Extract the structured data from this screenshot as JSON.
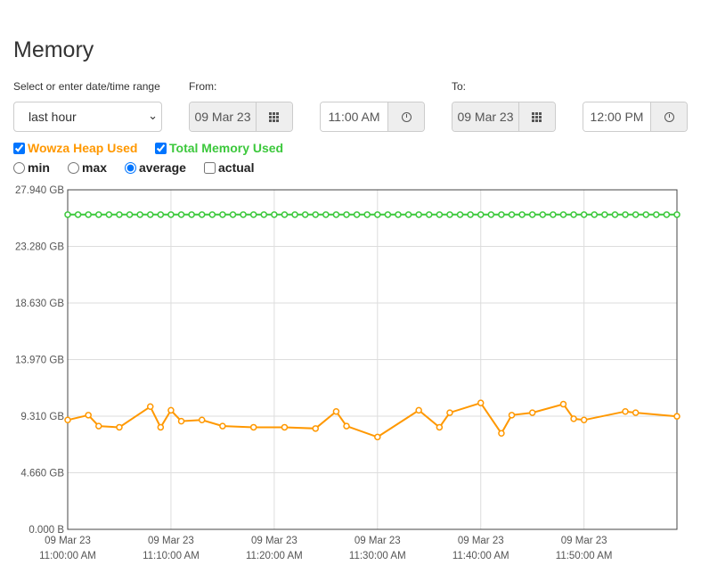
{
  "page": {
    "title": "Memory"
  },
  "range": {
    "label": "Select or enter date/time range",
    "selected": "last hour",
    "from_label": "From:",
    "to_label": "To:",
    "from_date": "09 Mar 23",
    "from_time": "11:00 AM",
    "to_date": "09 Mar 23",
    "to_time": "12:00 PM"
  },
  "series_toggles": [
    {
      "label": "Wowza Heap Used",
      "checked": true,
      "color": "#ff9800"
    },
    {
      "label": "Total Memory Used",
      "checked": true,
      "color": "#3cc83c"
    }
  ],
  "aggregations": [
    {
      "label": "min",
      "type": "radio",
      "checked": false
    },
    {
      "label": "max",
      "type": "radio",
      "checked": false
    },
    {
      "label": "average",
      "type": "radio",
      "checked": true
    },
    {
      "label": "actual",
      "type": "checkbox",
      "checked": false
    }
  ],
  "chart_data": {
    "type": "line",
    "ylim": [
      0,
      27.94
    ],
    "y_ticks": [
      {
        "value": 0,
        "label": "0.000 B"
      },
      {
        "value": 4.66,
        "label": "4.660 GB"
      },
      {
        "value": 9.31,
        "label": "9.310 GB"
      },
      {
        "value": 13.97,
        "label": "13.970 GB"
      },
      {
        "value": 18.63,
        "label": "18.630 GB"
      },
      {
        "value": 23.28,
        "label": "23.280 GB"
      },
      {
        "value": 27.94,
        "label": "27.940 GB"
      }
    ],
    "xlim": [
      0,
      59
    ],
    "x_ticks": [
      {
        "minute": 0,
        "date": "09 Mar 23",
        "time": "11:00:00 AM"
      },
      {
        "minute": 10,
        "date": "09 Mar 23",
        "time": "11:10:00 AM"
      },
      {
        "minute": 20,
        "date": "09 Mar 23",
        "time": "11:20:00 AM"
      },
      {
        "minute": 30,
        "date": "09 Mar 23",
        "time": "11:30:00 AM"
      },
      {
        "minute": 40,
        "date": "09 Mar 23",
        "time": "11:40:00 AM"
      },
      {
        "minute": 50,
        "date": "09 Mar 23",
        "time": "11:50:00 AM"
      }
    ],
    "series": [
      {
        "name": "Total Memory Used",
        "color": "#3cc83c",
        "x": [
          0,
          1,
          2,
          3,
          4,
          5,
          6,
          7,
          8,
          9,
          10,
          11,
          12,
          13,
          14,
          15,
          16,
          17,
          18,
          19,
          20,
          21,
          22,
          23,
          24,
          25,
          26,
          27,
          28,
          29,
          30,
          31,
          32,
          33,
          34,
          35,
          36,
          37,
          38,
          39,
          40,
          41,
          42,
          43,
          44,
          45,
          46,
          47,
          48,
          49,
          50,
          51,
          52,
          53,
          54,
          55,
          56,
          57,
          58,
          59
        ],
        "y": [
          25.9,
          25.9,
          25.9,
          25.9,
          25.9,
          25.9,
          25.9,
          25.9,
          25.9,
          25.9,
          25.9,
          25.9,
          25.9,
          25.9,
          25.9,
          25.9,
          25.9,
          25.9,
          25.9,
          25.9,
          25.9,
          25.9,
          25.9,
          25.9,
          25.9,
          25.9,
          25.9,
          25.9,
          25.9,
          25.9,
          25.9,
          25.9,
          25.9,
          25.9,
          25.9,
          25.9,
          25.9,
          25.9,
          25.9,
          25.9,
          25.9,
          25.9,
          25.9,
          25.9,
          25.9,
          25.9,
          25.9,
          25.9,
          25.9,
          25.9,
          25.9,
          25.9,
          25.9,
          25.9,
          25.9,
          25.9,
          25.9,
          25.9,
          25.9,
          25.9
        ]
      },
      {
        "name": "Wowza Heap Used",
        "color": "#ff9800",
        "x": [
          0,
          2,
          3,
          5,
          8,
          9,
          10,
          11,
          13,
          15,
          18,
          21,
          24,
          26,
          27,
          30,
          34,
          36,
          37,
          40,
          42,
          43,
          45,
          48,
          49,
          50,
          54,
          55,
          59
        ],
        "y": [
          9.0,
          9.4,
          8.5,
          8.4,
          10.1,
          8.4,
          9.8,
          8.9,
          9.0,
          8.5,
          8.4,
          8.4,
          8.3,
          9.7,
          8.5,
          7.6,
          9.8,
          8.4,
          9.6,
          10.4,
          7.9,
          9.4,
          9.6,
          10.3,
          9.1,
          9.0,
          9.7,
          9.6,
          9.3
        ]
      }
    ]
  }
}
